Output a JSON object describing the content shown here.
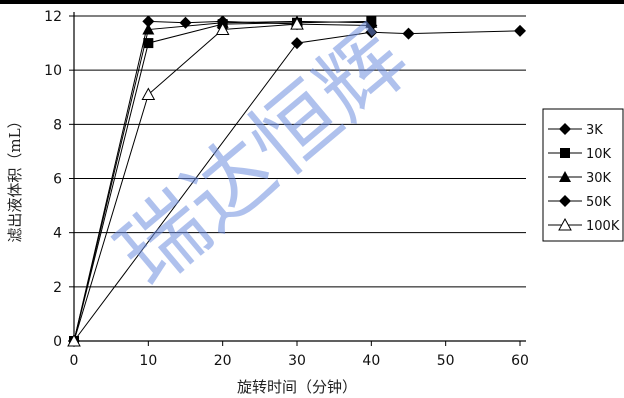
{
  "chart_data": {
    "type": "line",
    "xlabel": "旋转时间（分钟）",
    "ylabel": "滤出液体积（mL）",
    "xlim": [
      0,
      60
    ],
    "ylim": [
      0,
      12
    ],
    "xticks": [
      0,
      10,
      20,
      30,
      40,
      50,
      60
    ],
    "yticks": [
      0,
      2,
      4,
      6,
      8,
      10,
      12
    ],
    "grid": "horizontal",
    "legend_position": "right",
    "series": [
      {
        "name": "3K",
        "marker": "diamond",
        "x": [
          0,
          30,
          40,
          45,
          60
        ],
        "y": [
          0,
          11.0,
          11.4,
          11.35,
          11.45
        ]
      },
      {
        "name": "10K",
        "marker": "square",
        "x": [
          0,
          10,
          20,
          30,
          40
        ],
        "y": [
          0,
          11.0,
          11.7,
          11.75,
          11.8
        ]
      },
      {
        "name": "30K",
        "marker": "triangle",
        "x": [
          0,
          10,
          20,
          30,
          40
        ],
        "y": [
          0,
          11.5,
          11.75,
          11.8,
          11.75
        ]
      },
      {
        "name": "50K",
        "marker": "diamond",
        "x": [
          0,
          10,
          15,
          20,
          30,
          40
        ],
        "y": [
          0,
          11.8,
          11.75,
          11.8,
          11.7,
          11.65
        ]
      },
      {
        "name": "100K",
        "marker": "open-triangle",
        "x": [
          0,
          10,
          20,
          30
        ],
        "y": [
          0,
          9.1,
          11.5,
          11.7
        ]
      }
    ]
  },
  "watermark": "瑞达恒辉"
}
